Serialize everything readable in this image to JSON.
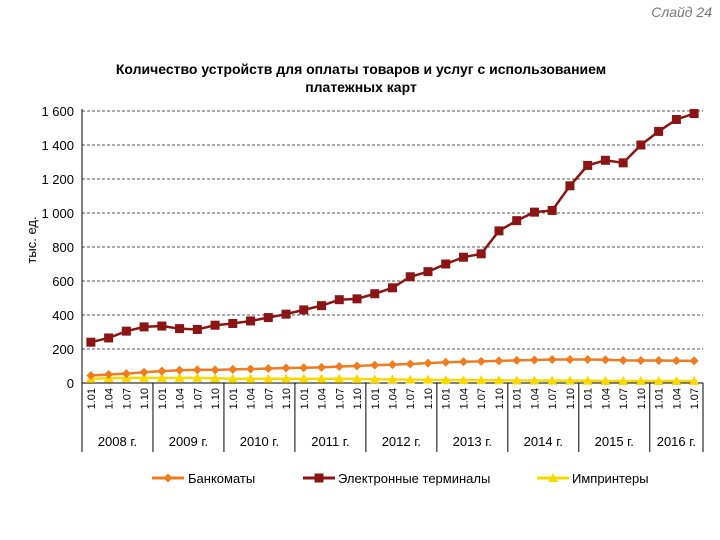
{
  "slide_label": "Слайд 24",
  "chart_data": {
    "type": "line",
    "title_lines": [
      "Количество устройств для оплаты товаров и услуг с использованием",
      "платежных карт"
    ],
    "ylabel": "тыс. ед.",
    "ylim": [
      0,
      1600
    ],
    "yticks": [
      0,
      200,
      400,
      600,
      800,
      1000,
      1200,
      1400,
      1600
    ],
    "ytick_labels": [
      "0",
      "200",
      "400",
      "600",
      "800",
      "1 000",
      "1 200",
      "1 400",
      "1 600"
    ],
    "grid": "horizontal dashed",
    "legend_position": "bottom",
    "x": [
      "01.01",
      "01.04",
      "01.07",
      "01.10",
      "01.01",
      "01.04",
      "01.07",
      "01.10",
      "01.01",
      "01.04",
      "01.07",
      "01.10",
      "01.01",
      "01.04",
      "01.07",
      "01.10",
      "01.01",
      "01.04",
      "01.07",
      "01.10",
      "01.01",
      "01.04",
      "01.07",
      "01.10",
      "01.01",
      "01.04",
      "01.07",
      "01.10",
      "01.01",
      "01.04",
      "01.07",
      "01.10",
      "01.01",
      "01.04",
      "01.07"
    ],
    "x_tick_labels": [
      "1.01",
      "1.04",
      "1.07",
      "1.10",
      "1.01",
      "1.04",
      "1.07",
      "1.10",
      "1.01",
      "1.04",
      "1.07",
      "1.10",
      "1.01",
      "1.04",
      "1.07",
      "1.10",
      "1.01",
      "1.04",
      "1.07",
      "1.10",
      "1.01",
      "1.04",
      "1.07",
      "1.10",
      "1.01",
      "1.04",
      "1.07",
      "1.10",
      "1.01",
      "1.04",
      "1.07",
      "1.10",
      "1.01",
      "1.04",
      "1.07"
    ],
    "year_groups": [
      {
        "label": "2008 г.",
        "count": 4
      },
      {
        "label": "2009 г.",
        "count": 4
      },
      {
        "label": "2010 г.",
        "count": 4
      },
      {
        "label": "2011 г.",
        "count": 4
      },
      {
        "label": "2012 г.",
        "count": 4
      },
      {
        "label": "2013 г.",
        "count": 4
      },
      {
        "label": "2014 г.",
        "count": 4
      },
      {
        "label": "2015 г.",
        "count": 4
      },
      {
        "label": "2016 г.",
        "count": 3
      }
    ],
    "series": [
      {
        "name": "Банкоматы",
        "color": "#f07c1e",
        "marker": "diamond",
        "values": [
          44,
          50,
          55,
          63,
          70,
          75,
          78,
          77,
          80,
          82,
          85,
          88,
          90,
          92,
          97,
          100,
          105,
          108,
          112,
          117,
          122,
          125,
          127,
          130,
          133,
          135,
          138,
          138,
          138,
          137,
          133,
          132,
          132,
          131,
          130
        ]
      },
      {
        "name": "Электронные терминалы",
        "color": "#8b1414",
        "marker": "square",
        "values": [
          240,
          265,
          305,
          330,
          335,
          320,
          315,
          340,
          350,
          365,
          385,
          405,
          430,
          455,
          490,
          495,
          525,
          560,
          625,
          655,
          700,
          740,
          760,
          895,
          955,
          1005,
          1015,
          1160,
          1280,
          1310,
          1295,
          1400,
          1480,
          1550,
          1585
        ]
      },
      {
        "name": "Импринтеры",
        "color": "#f7d800",
        "marker": "triangle",
        "values": [
          25,
          28,
          30,
          30,
          30,
          30,
          30,
          28,
          25,
          25,
          25,
          25,
          25,
          25,
          25,
          24,
          22,
          21,
          20,
          20,
          18,
          17,
          17,
          16,
          15,
          15,
          14,
          14,
          13,
          12,
          12,
          12,
          12,
          12,
          12
        ]
      }
    ]
  }
}
